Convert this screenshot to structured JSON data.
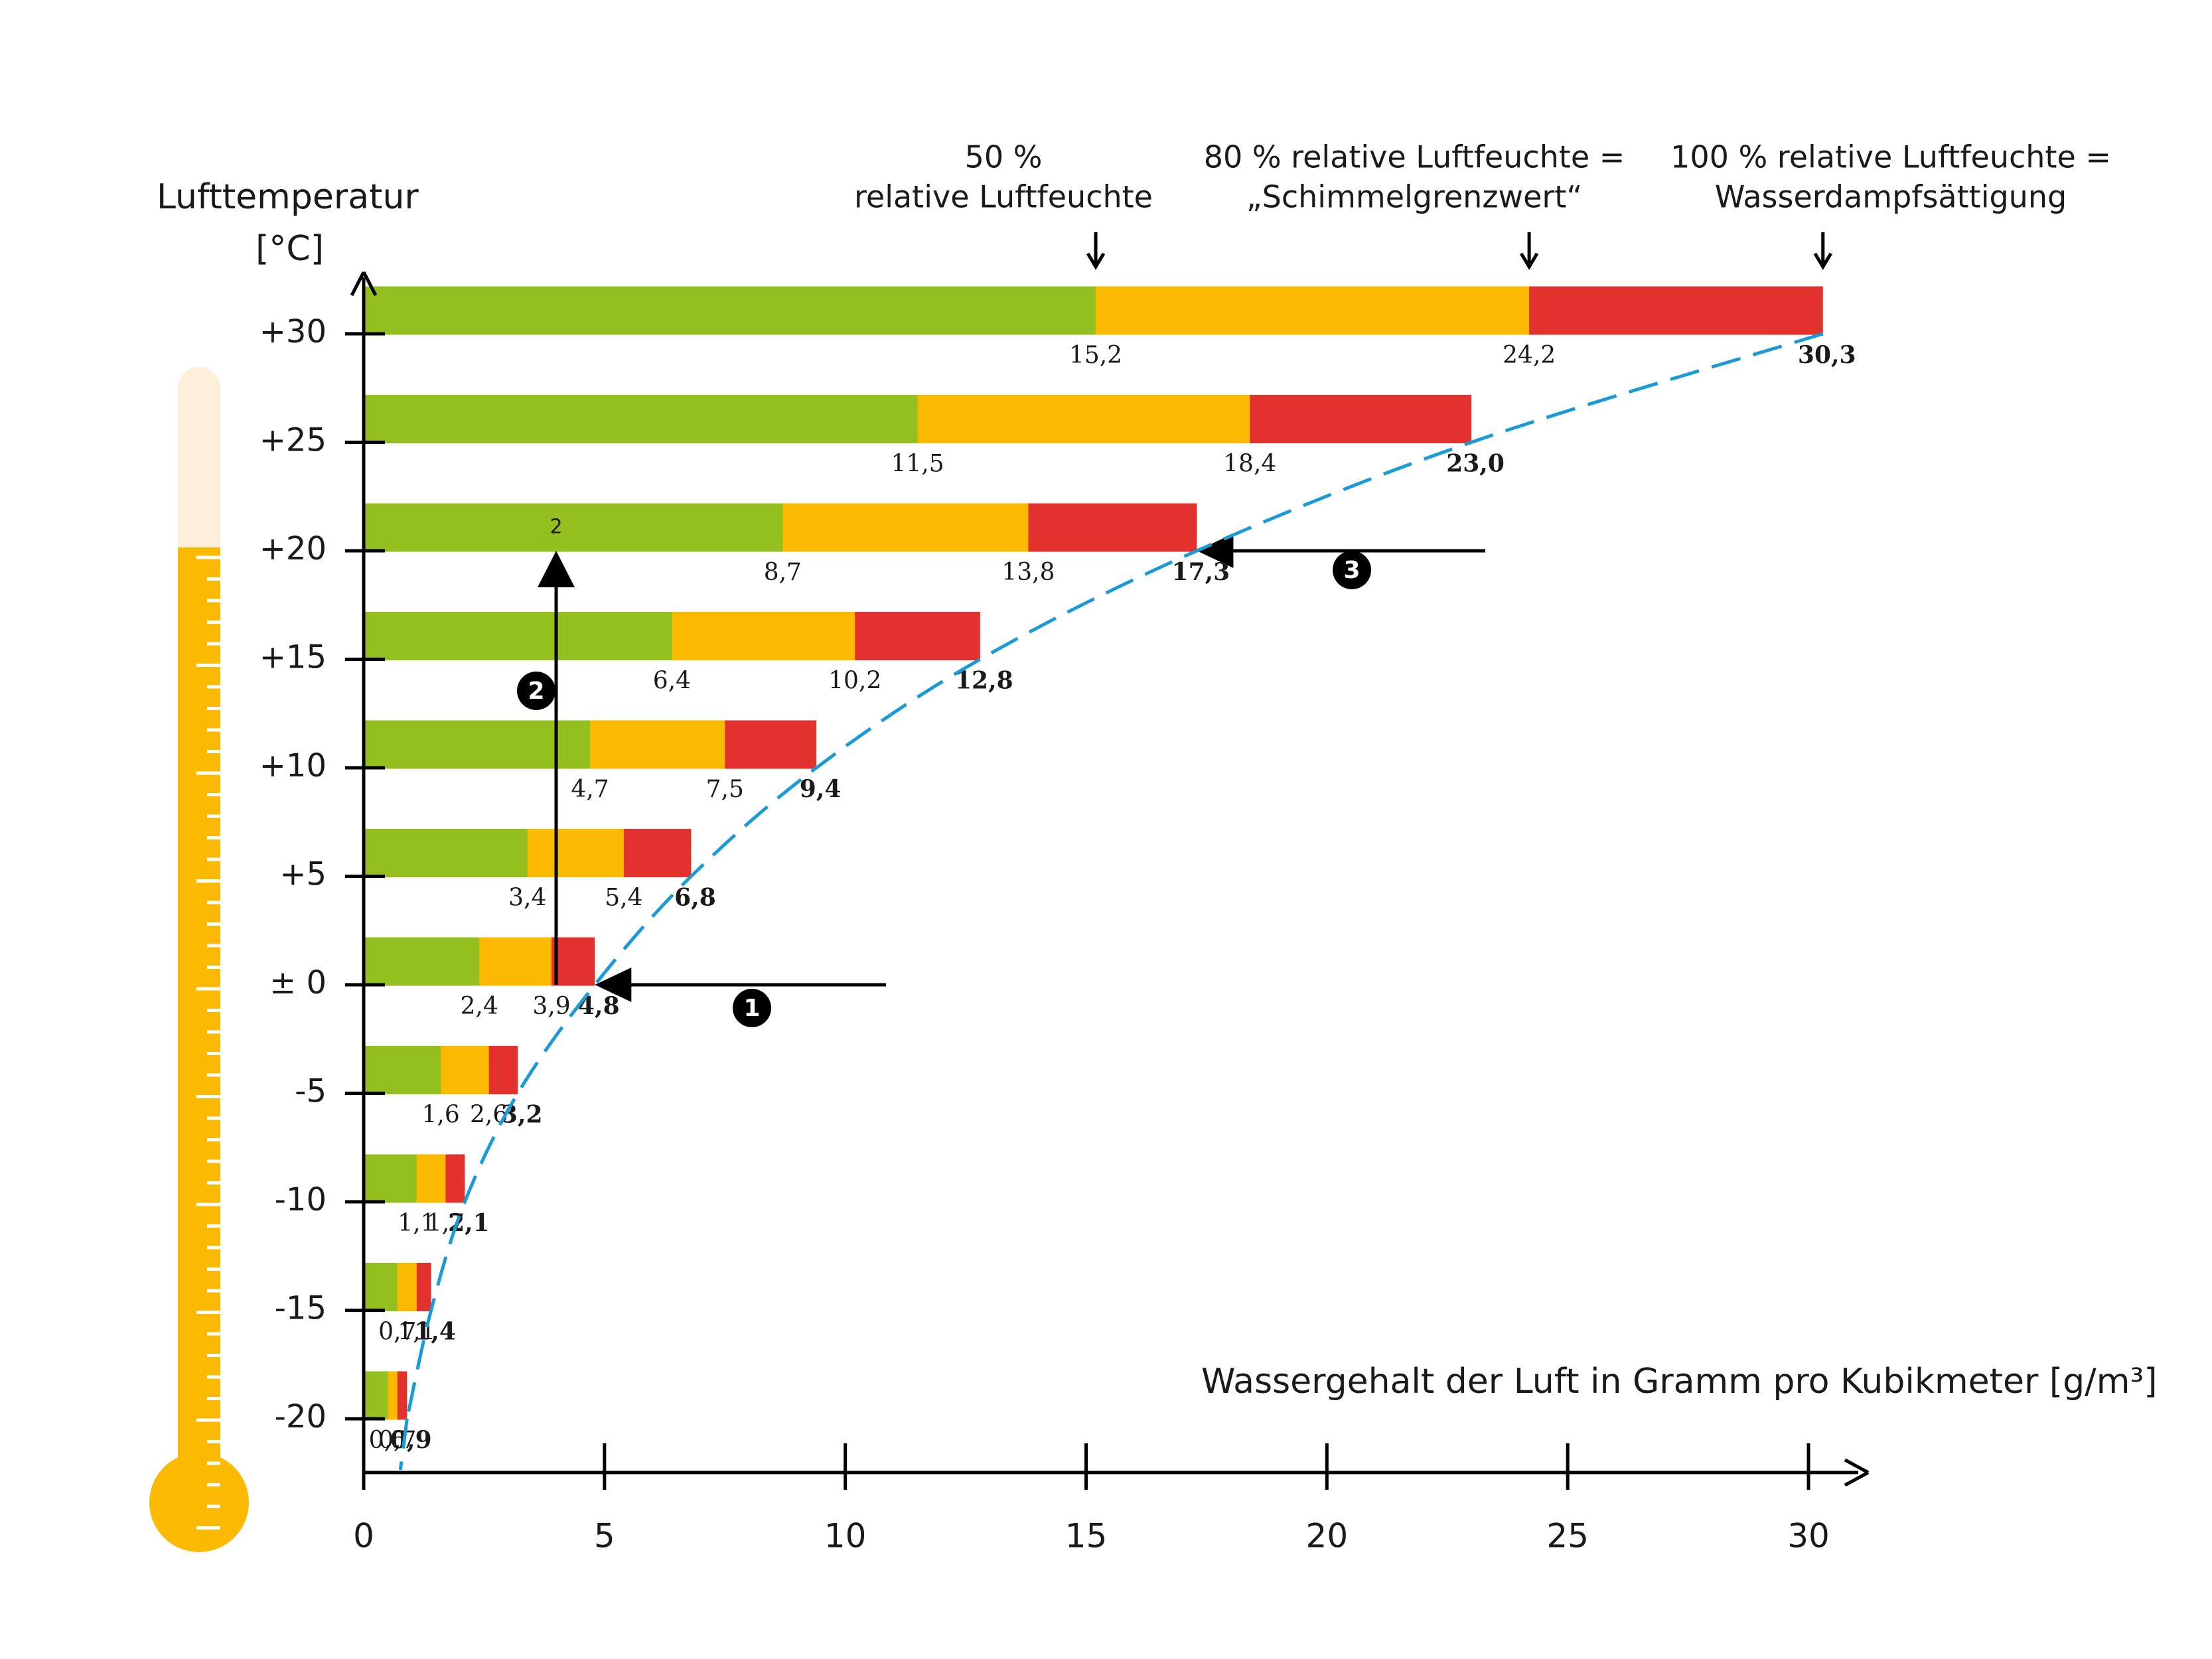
{
  "chart_data": {
    "type": "overlap-bar",
    "y_title": [
      "Lufttemperatur",
      "[°C]"
    ],
    "x_title": "Wassergehalt der Luft in Gramm pro Kubikmeter [g/m³]",
    "categories": [
      "+30",
      "+25",
      "+20",
      "+15",
      "+10",
      "+5",
      "± 0",
      "-5",
      "-10",
      "-15",
      "-20"
    ],
    "series": [
      {
        "name": [
          "50 %",
          "relative Luftfeuchte"
        ],
        "color": "#93c01f",
        "values": [
          15.2,
          11.5,
          8.7,
          6.4,
          4.7,
          3.4,
          2.4,
          1.6,
          1.1,
          0.7,
          0.5
        ],
        "value_labels": [
          "15,2",
          "11,5",
          "8,7",
          "6,4",
          "4,7",
          "3,4",
          "2,4",
          "1,6",
          "1,1",
          "0,7",
          "0,5"
        ]
      },
      {
        "name": [
          "80 % relative Luftfeuchte =",
          "„Schimmelgrenzwert“"
        ],
        "color": "#fbb900",
        "values": [
          24.2,
          18.4,
          13.8,
          10.2,
          7.5,
          5.4,
          3.9,
          2.6,
          1.7,
          1.1,
          0.7
        ],
        "value_labels": [
          "24,2",
          "18,4",
          "13,8",
          "10,2",
          "7,5",
          "5,4",
          "3,9",
          "2,6",
          "1,7",
          "1,1",
          "0,7"
        ]
      },
      {
        "name": [
          "100 % relative Luftfeuchte =",
          "Wasserdampfsättigung"
        ],
        "color": "#e3322d",
        "values": [
          30.3,
          23.0,
          17.3,
          12.8,
          9.4,
          6.8,
          4.8,
          3.2,
          2.1,
          1.4,
          0.9
        ],
        "value_labels": [
          "30,3",
          "23,0",
          "17,3",
          "12,8",
          "9,4",
          "6,8",
          "4,8",
          "3,2",
          "2,1",
          "1,4",
          "0,9"
        ]
      }
    ],
    "curve_color": "#1a9bd7",
    "xlim": [
      0,
      30
    ],
    "xticks": [
      0,
      5,
      10,
      15,
      20,
      25,
      30
    ],
    "annotations": [
      "2",
      "1",
      "2",
      "3"
    ]
  }
}
